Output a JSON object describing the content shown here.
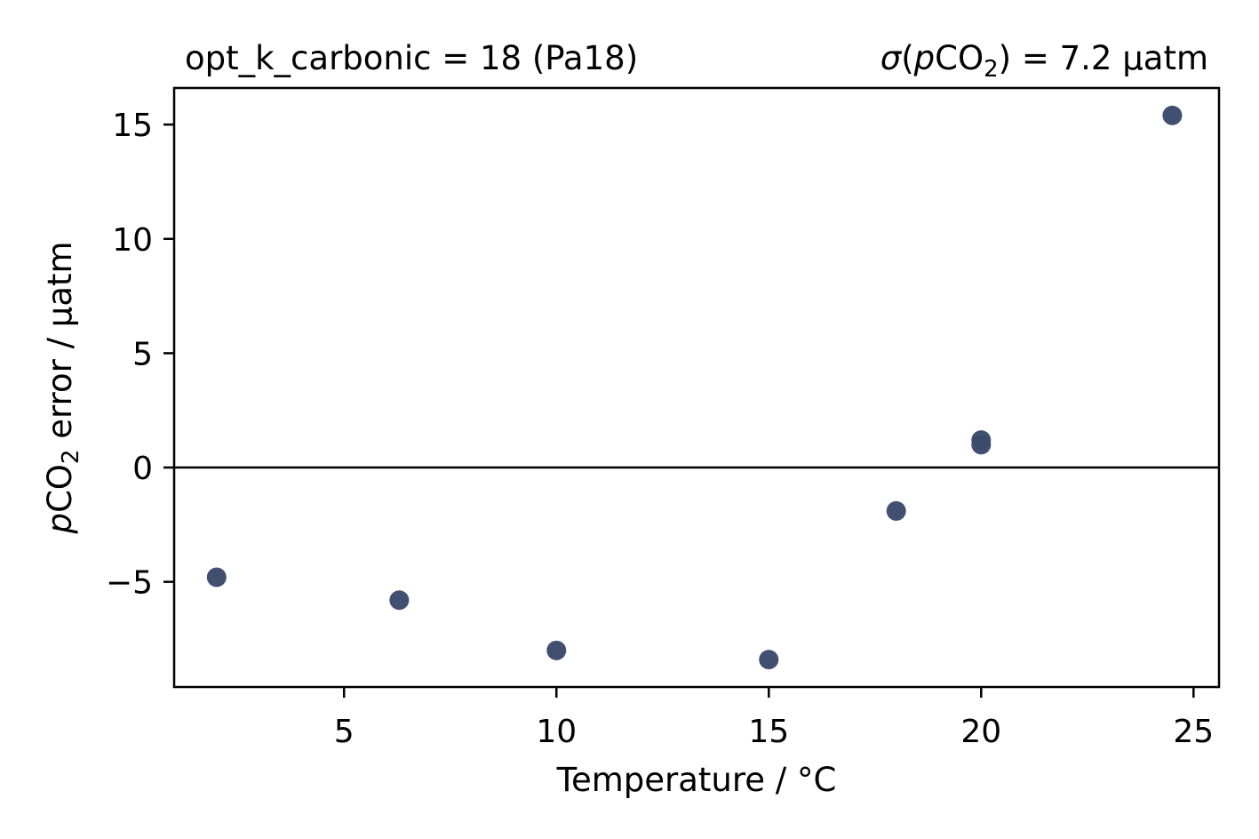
{
  "chart_data": {
    "type": "scatter",
    "title_left": "opt_k_carbonic = 18 (Pa18)",
    "title_right": {
      "prefix_sigma": "σ",
      "open_paren": "(",
      "p": "p",
      "co": "CO",
      "sub": "2",
      "close": ") = 7.2 µatm"
    },
    "xlabel": "Temperature / °C",
    "ylabel": {
      "p": "p",
      "co": "CO",
      "sub": "2",
      "rest": " error / µatm"
    },
    "xlim": [
      1.0,
      25.6
    ],
    "ylim": [
      -9.6,
      16.6
    ],
    "xticks": [
      5,
      10,
      15,
      20,
      25
    ],
    "xtick_labels": [
      "5",
      "10",
      "15",
      "20",
      "25"
    ],
    "yticks": [
      -5,
      0,
      5,
      10,
      15
    ],
    "ytick_labels": [
      "−5",
      "0",
      "5",
      "10",
      "15"
    ],
    "zero_line": 0,
    "grid": false,
    "point_color": "#3b4a6b",
    "series": [
      {
        "x": [
          2.0,
          6.3,
          10.0,
          15.0,
          18.0,
          20.0,
          20.0,
          24.5
        ],
        "y": [
          -4.8,
          -5.8,
          -8.0,
          -8.4,
          -1.9,
          1.0,
          1.2,
          15.4
        ]
      }
    ]
  }
}
